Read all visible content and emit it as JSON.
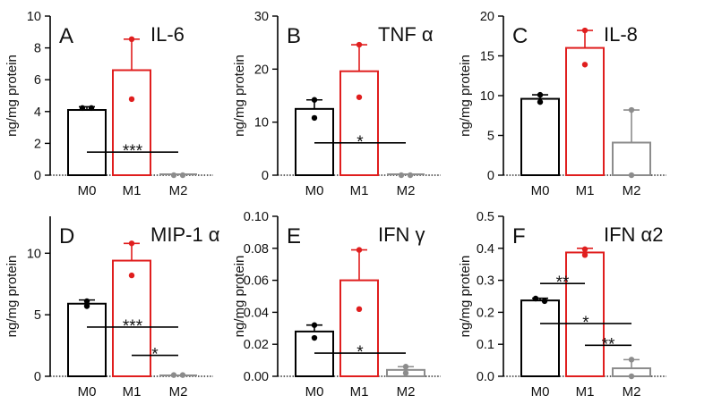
{
  "figure": {
    "group_labels": [
      "M0",
      "M1",
      "M2"
    ],
    "group_colors": [
      "#000000",
      "#e01e1e",
      "#8c8c8c"
    ]
  },
  "chart_data": [
    {
      "type": "bar",
      "letter": "A",
      "title": "IL-6",
      "ylabel": "ng/mg protein",
      "categories": [
        "M0",
        "M1",
        "M2"
      ],
      "ylim": [
        0,
        10
      ],
      "yticks": [
        "0",
        "2",
        "4",
        "6",
        "8",
        "10"
      ],
      "ytick_values": [
        0,
        2,
        4,
        6,
        8,
        10
      ],
      "series": [
        {
          "name": "mean",
          "values": [
            4.1,
            6.6,
            0.0
          ]
        }
      ],
      "error_upper": [
        4.3,
        8.55,
        0.0
      ],
      "points": [
        [
          4.22,
          4.22
        ],
        [
          8.55,
          4.78
        ],
        [
          0.0,
          0.0
        ]
      ],
      "significance": [
        {
          "label": "***",
          "from": "M0",
          "to": "M2",
          "y": 1.45
        }
      ]
    },
    {
      "type": "bar",
      "letter": "B",
      "title": "TNF α",
      "ylabel": "ng/mg protein",
      "categories": [
        "M0",
        "M1",
        "M2"
      ],
      "ylim": [
        0,
        30
      ],
      "yticks": [
        "0",
        "10",
        "20",
        "30"
      ],
      "ytick_values": [
        0,
        10,
        20,
        30
      ],
      "series": [
        {
          "name": "mean",
          "values": [
            12.5,
            19.6,
            0.0
          ]
        }
      ],
      "error_upper": [
        14.2,
        24.6,
        0.0
      ],
      "points": [
        [
          14.2,
          10.8
        ],
        [
          24.6,
          14.7
        ],
        [
          0.0,
          0.0
        ]
      ],
      "significance": [
        {
          "label": "*",
          "from": "M0",
          "to": "M2",
          "y": 6.1
        }
      ]
    },
    {
      "type": "bar",
      "letter": "C",
      "title": "IL-8",
      "ylabel": "ng/mg protein",
      "categories": [
        "M0",
        "M1",
        "M2"
      ],
      "ylim": [
        0,
        20
      ],
      "yticks": [
        "0",
        "5",
        "10",
        "15",
        "20"
      ],
      "ytick_values": [
        0,
        5,
        10,
        15,
        20
      ],
      "series": [
        {
          "name": "mean",
          "values": [
            9.6,
            16.0,
            4.1
          ]
        }
      ],
      "error_upper": [
        10.1,
        18.2,
        8.2
      ],
      "points": [
        [
          10.1,
          9.2
        ],
        [
          18.2,
          13.9
        ],
        [
          8.2,
          0.0
        ]
      ],
      "significance": []
    },
    {
      "type": "bar",
      "letter": "D",
      "title": "MIP-1 α",
      "ylabel": "ng/mg protein",
      "categories": [
        "M0",
        "M1",
        "M2"
      ],
      "ylim": [
        0,
        13
      ],
      "yticks": [
        "0",
        "5",
        "10"
      ],
      "ytick_values": [
        0,
        5,
        10
      ],
      "series": [
        {
          "name": "mean",
          "values": [
            5.9,
            9.4,
            0.1
          ]
        }
      ],
      "error_upper": [
        6.2,
        10.8,
        0.1
      ],
      "points": [
        [
          6.1,
          5.7
        ],
        [
          10.8,
          8.2
        ],
        [
          0.1,
          0.1
        ]
      ],
      "significance": [
        {
          "label": "***",
          "from": "M0",
          "to": "M2",
          "y": 4.0
        },
        {
          "label": "*",
          "from": "M1",
          "to": "M2",
          "y": 1.7
        }
      ]
    },
    {
      "type": "bar",
      "letter": "E",
      "title": "IFN γ",
      "ylabel": "ng/mg protein",
      "categories": [
        "M0",
        "M1",
        "M2"
      ],
      "ylim": [
        0,
        0.1
      ],
      "yticks": [
        "0.00",
        "0.02",
        "0.04",
        "0.06",
        "0.08",
        "0.10"
      ],
      "ytick_values": [
        0,
        0.02,
        0.04,
        0.06,
        0.08,
        0.1
      ],
      "series": [
        {
          "name": "mean",
          "values": [
            0.028,
            0.06,
            0.004
          ]
        }
      ],
      "error_upper": [
        0.032,
        0.079,
        0.006
      ],
      "points": [
        [
          0.032,
          0.024
        ],
        [
          0.079,
          0.042
        ],
        [
          0.006,
          0.002
        ]
      ],
      "significance": [
        {
          "label": "*",
          "from": "M0",
          "to": "M2",
          "y": 0.0145
        }
      ]
    },
    {
      "type": "bar",
      "letter": "F",
      "title": "IFN α2",
      "ylabel": "ng/mg protein",
      "categories": [
        "M0",
        "M1",
        "M2"
      ],
      "ylim": [
        0,
        0.5
      ],
      "yticks": [
        "0.0",
        "0.1",
        "0.2",
        "0.3",
        "0.4",
        "0.5"
      ],
      "ytick_values": [
        0,
        0.1,
        0.2,
        0.3,
        0.4,
        0.5
      ],
      "series": [
        {
          "name": "mean",
          "values": [
            0.237,
            0.387,
            0.025
          ]
        }
      ],
      "error_upper": [
        0.244,
        0.4,
        0.052
      ],
      "points": [
        [
          0.243,
          0.235
        ],
        [
          0.397,
          0.379
        ],
        [
          0.052,
          0.0
        ]
      ],
      "significance": [
        {
          "label": "**",
          "from": "M0",
          "to": "M1",
          "y": 0.29
        },
        {
          "label": "*",
          "from": "M0",
          "to": "M2",
          "y": 0.165
        },
        {
          "label": "**",
          "from": "M1",
          "to": "M2",
          "y": 0.097
        }
      ]
    }
  ]
}
